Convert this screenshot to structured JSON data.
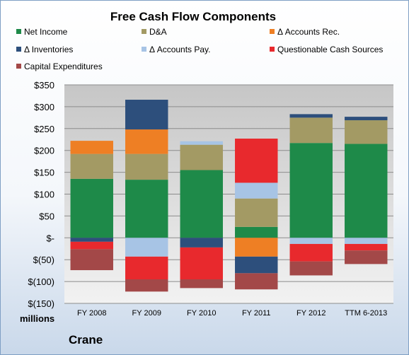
{
  "chart_data": {
    "type": "bar",
    "stacked": true,
    "title": "Free Cash Flow Components",
    "ylabel": "millions",
    "company": "Crane",
    "categories": [
      "FY 2008",
      "FY 2009",
      "FY 2010",
      "FY 2011",
      "FY 2012",
      "TTM 6-2013"
    ],
    "ylim": [
      -150,
      350
    ],
    "yticks": [
      350,
      300,
      250,
      200,
      150,
      100,
      50,
      0,
      -50,
      -100,
      -150
    ],
    "ytick_labels": [
      "$350",
      "$300",
      "$250",
      "$200",
      "$150",
      "$100",
      "$50",
      "$-",
      "$(50)",
      "$(100)",
      "$(150)"
    ],
    "grid": true,
    "legend_position": "top",
    "series": [
      {
        "name": "Net Income",
        "color": "#1e8a49",
        "values": [
          135,
          133,
          155,
          25,
          217,
          215
        ]
      },
      {
        "name": "D&A",
        "color": "#a39a64",
        "values": [
          57,
          59,
          58,
          65,
          58,
          54
        ]
      },
      {
        "name": "Δ Accounts Rec.",
        "color": "#ee7f24",
        "values": [
          30,
          56,
          0,
          -43,
          0,
          0
        ]
      },
      {
        "name": "Δ Inventories",
        "color": "#2d4f7c",
        "values": [
          -9,
          68,
          -22,
          -38,
          8,
          8
        ]
      },
      {
        "name": "Δ Accounts Pay.",
        "color": "#a7c4e5",
        "values": [
          0,
          -43,
          8,
          36,
          -14,
          -14
        ]
      },
      {
        "name": "Questionable Cash Sources",
        "color": "#e8292d",
        "values": [
          -17,
          -52,
          -73,
          101,
          -40,
          -15
        ]
      },
      {
        "name": "Capital Expenditures",
        "color": "#a34848",
        "values": [
          -48,
          -28,
          -20,
          -37,
          -32,
          -31
        ]
      }
    ]
  }
}
